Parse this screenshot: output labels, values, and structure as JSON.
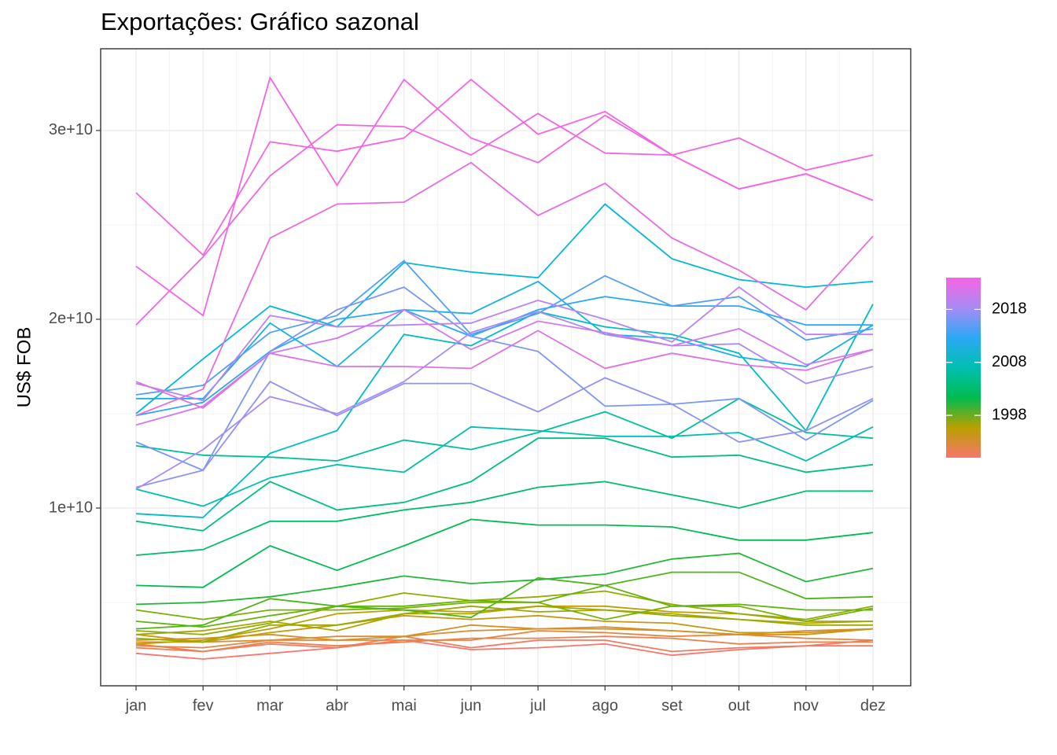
{
  "chart_data": {
    "type": "line",
    "title": "Exportações: Gráfico sazonal",
    "y_label": "US$ FOB",
    "categories": [
      "jan",
      "fev",
      "mar",
      "abr",
      "mai",
      "jun",
      "jul",
      "ago",
      "set",
      "out",
      "nov",
      "dez"
    ],
    "ylim": [
      583000000.0,
      34330000000.0
    ],
    "yticks": [
      {
        "value": 10000000000.0,
        "label": "1e+10"
      },
      {
        "value": 20000000000.0,
        "label": "2e+10"
      },
      {
        "value": 30000000000.0,
        "label": "3e+10"
      }
    ],
    "grid": true,
    "colorbar": {
      "lim": [
        1990,
        2024
      ],
      "ticks": [
        1998,
        2008,
        2018
      ],
      "colors": [
        "#F8766D",
        "#B9A000",
        "#00BC50",
        "#00BFB0",
        "#2BA8F5",
        "#A88BF5",
        "#F564E3"
      ]
    },
    "series": [
      {
        "color": "#F8766D",
        "values": [
          2300000000.0,
          2000000000.0,
          2300000000.0,
          2600000000.0,
          3000000000.0,
          2500000000.0,
          2600000000.0,
          2800000000.0,
          2200000000.0,
          2500000000.0,
          2700000000.0,
          3000000000.0
        ]
      },
      {
        "color": "#F27A5E",
        "values": [
          2800000000.0,
          2400000000.0,
          2800000000.0,
          2600000000.0,
          3200000000.0,
          2600000000.0,
          3000000000.0,
          3000000000.0,
          2400000000.0,
          2600000000.0,
          2700000000.0,
          2700000000.0
        ]
      },
      {
        "color": "#EC7F4E",
        "values": [
          2600000000.0,
          2400000000.0,
          2900000000.0,
          2700000000.0,
          2900000000.0,
          3100000000.0,
          3100000000.0,
          3200000000.0,
          3100000000.0,
          2800000000.0,
          2900000000.0,
          2900000000.0
        ]
      },
      {
        "color": "#E5853E",
        "values": [
          2700000000.0,
          2600000000.0,
          3000000000.0,
          3000000000.0,
          3000000000.0,
          3000000000.0,
          3500000000.0,
          3400000000.0,
          3200000000.0,
          3300000000.0,
          3100000000.0,
          3000000000.0
        ]
      },
      {
        "color": "#DC8B2E",
        "values": [
          2900000000.0,
          2900000000.0,
          3000000000.0,
          3200000000.0,
          3200000000.0,
          3500000000.0,
          3600000000.0,
          3700000000.0,
          3500000000.0,
          3300000000.0,
          3500000000.0,
          3600000000.0
        ]
      },
      {
        "color": "#D29220",
        "values": [
          3000000000.0,
          3100000000.0,
          3300000000.0,
          3000000000.0,
          3200000000.0,
          3800000000.0,
          3600000000.0,
          3600000000.0,
          3500000000.0,
          3300000000.0,
          3300000000.0,
          3600000000.0
        ]
      },
      {
        "color": "#C69912",
        "values": [
          3300000000.0,
          2900000000.0,
          3400000000.0,
          3800000000.0,
          4300000000.0,
          4100000000.0,
          4300000000.0,
          4000000000.0,
          3900000000.0,
          3400000000.0,
          3400000000.0,
          3600000000.0
        ]
      },
      {
        "color": "#B9A000",
        "values": [
          2800000000.0,
          3000000000.0,
          3600000000.0,
          4400000000.0,
          4600000000.0,
          4500000000.0,
          4800000000.0,
          4800000000.0,
          4500000000.0,
          4400000000.0,
          4000000000.0,
          4000000000.0
        ]
      },
      {
        "color": "#A9A600",
        "values": [
          3300000000.0,
          3500000000.0,
          4000000000.0,
          3500000000.0,
          4400000000.0,
          4400000000.0,
          4800000000.0,
          4600000000.0,
          4400000000.0,
          4100000000.0,
          3900000000.0,
          4000000000.0
        ]
      },
      {
        "color": "#99AB00",
        "values": [
          3100000000.0,
          2900000000.0,
          3800000000.0,
          3800000000.0,
          4400000000.0,
          4800000000.0,
          4500000000.0,
          4600000000.0,
          4300000000.0,
          4100000000.0,
          3800000000.0,
          3800000000.0
        ]
      },
      {
        "color": "#8FAE00",
        "values": [
          3500000000.0,
          3300000000.0,
          3900000000.0,
          4800000000.0,
          5500000000.0,
          5100000000.0,
          5300000000.0,
          5600000000.0,
          4900000000.0,
          4400000000.0,
          4100000000.0,
          4800000000.0
        ]
      },
      {
        "color": "#78B100",
        "values": [
          4600000000.0,
          4100000000.0,
          4600000000.0,
          4600000000.0,
          4700000000.0,
          5000000000.0,
          5000000000.0,
          4100000000.0,
          4800000000.0,
          4800000000.0,
          4000000000.0,
          4700000000.0
        ]
      },
      {
        "color": "#62B30B",
        "values": [
          4000000000.0,
          3700000000.0,
          4300000000.0,
          4800000000.0,
          4800000000.0,
          5100000000.0,
          5000000000.0,
          5900000000.0,
          4800000000.0,
          4900000000.0,
          4600000000.0,
          4600000000.0
        ]
      },
      {
        "color": "#4DB617",
        "values": [
          3600000000.0,
          3800000000.0,
          5200000000.0,
          4800000000.0,
          4600000000.0,
          4200000000.0,
          6300000000.0,
          5900000000.0,
          6600000000.0,
          6600000000.0,
          5200000000.0,
          5300000000.0
        ]
      },
      {
        "color": "#20B935",
        "values": [
          4900000000.0,
          5000000000.0,
          5300000000.0,
          5800000000.0,
          6400000000.0,
          6000000000.0,
          6200000000.0,
          6500000000.0,
          7300000000.0,
          7600000000.0,
          6100000000.0,
          6800000000.0
        ]
      },
      {
        "color": "#00BC50",
        "values": [
          5900000000.0,
          5800000000.0,
          8000000000.0,
          6700000000.0,
          8000000000.0,
          9400000000.0,
          9100000000.0,
          9100000000.0,
          9000000000.0,
          8300000000.0,
          8300000000.0,
          8700000000.0
        ]
      },
      {
        "color": "#00BD6B",
        "values": [
          7500000000.0,
          7800000000.0,
          9300000000.0,
          9300000000.0,
          9900000000.0,
          10300000000.0,
          11100000000.0,
          11400000000.0,
          10700000000.0,
          10000000000.0,
          10900000000.0,
          10900000000.0
        ]
      },
      {
        "color": "#00BE86",
        "values": [
          9300000000.0,
          8800000000.0,
          11400000000.0,
          9900000000.0,
          10300000000.0,
          11400000000.0,
          13700000000.0,
          13700000000.0,
          12700000000.0,
          12800000000.0,
          11900000000.0,
          12300000000.0
        ]
      },
      {
        "color": "#00BF9B",
        "values": [
          13300000000.0,
          12800000000.0,
          12700000000.0,
          12500000000.0,
          13600000000.0,
          13100000000.0,
          14000000000.0,
          15100000000.0,
          13700000000.0,
          15800000000.0,
          14000000000.0,
          13700000000.0
        ]
      },
      {
        "color": "#00BFB0",
        "values": [
          11000000000.0,
          10100000000.0,
          11600000000.0,
          12300000000.0,
          11900000000.0,
          14300000000.0,
          14100000000.0,
          13800000000.0,
          13800000000.0,
          14000000000.0,
          12500000000.0,
          14300000000.0
        ]
      },
      {
        "color": "#00BCC4",
        "values": [
          9700000000.0,
          9500000000.0,
          12900000000.0,
          14100000000.0,
          19200000000.0,
          18600000000.0,
          20400000000.0,
          19600000000.0,
          19200000000.0,
          18200000000.0,
          14100000000.0,
          20800000000.0
        ]
      },
      {
        "color": "#00B8D8",
        "values": [
          15000000000.0,
          17900000000.0,
          20700000000.0,
          19600000000.0,
          23000000000.0,
          22500000000.0,
          22200000000.0,
          26100000000.0,
          23200000000.0,
          22100000000.0,
          21700000000.0,
          22000000000.0
        ]
      },
      {
        "color": "#16B0E6",
        "values": [
          15800000000.0,
          15800000000.0,
          19800000000.0,
          17500000000.0,
          20500000000.0,
          20300000000.0,
          22000000000.0,
          19200000000.0,
          19000000000.0,
          18000000000.0,
          17500000000.0,
          19700000000.0
        ]
      },
      {
        "color": "#2BA8F5",
        "values": [
          14900000000.0,
          15600000000.0,
          18300000000.0,
          20000000000.0,
          20500000000.0,
          19100000000.0,
          20500000000.0,
          21200000000.0,
          20700000000.0,
          20700000000.0,
          19700000000.0,
          19700000000.0
        ]
      },
      {
        "color": "#529FF7",
        "values": [
          16000000000.0,
          16500000000.0,
          19300000000.0,
          20200000000.0,
          23100000000.0,
          19200000000.0,
          20300000000.0,
          22300000000.0,
          20700000000.0,
          21200000000.0,
          18900000000.0,
          19500000000.0
        ]
      },
      {
        "color": "#7A97F8",
        "values": [
          13500000000.0,
          12000000000.0,
          18300000000.0,
          20500000000.0,
          21700000000.0,
          19100000000.0,
          18300000000.0,
          15400000000.0,
          15500000000.0,
          15800000000.0,
          13600000000.0,
          15700000000.0
        ]
      },
      {
        "color": "#9191F6",
        "values": [
          11100000000.0,
          12000000000.0,
          16700000000.0,
          14900000000.0,
          16600000000.0,
          16600000000.0,
          15100000000.0,
          16900000000.0,
          15500000000.0,
          13500000000.0,
          14100000000.0,
          15800000000.0
        ]
      },
      {
        "color": "#A88BF5",
        "values": [
          11000000000.0,
          13100000000.0,
          15900000000.0,
          15000000000.0,
          16700000000.0,
          19300000000.0,
          20400000000.0,
          19200000000.0,
          18600000000.0,
          18700000000.0,
          16600000000.0,
          17500000000.0
        ]
      },
      {
        "color": "#BC82F2",
        "values": [
          16600000000.0,
          15700000000.0,
          20200000000.0,
          19600000000.0,
          19700000000.0,
          19800000000.0,
          21000000000.0,
          20000000000.0,
          18800000000.0,
          21700000000.0,
          19200000000.0,
          19200000000.0
        ]
      },
      {
        "color": "#D078F0",
        "values": [
          14400000000.0,
          15400000000.0,
          18200000000.0,
          19000000000.0,
          20500000000.0,
          18400000000.0,
          19900000000.0,
          19300000000.0,
          18600000000.0,
          19500000000.0,
          17600000000.0,
          18400000000.0
        ]
      },
      {
        "color": "#DE71E6",
        "values": [
          16700000000.0,
          15300000000.0,
          18200000000.0,
          17500000000.0,
          17500000000.0,
          17400000000.0,
          19400000000.0,
          17400000000.0,
          18200000000.0,
          17600000000.0,
          17300000000.0,
          18400000000.0
        ]
      },
      {
        "color": "#E86CDF",
        "values": [
          14900000000.0,
          16300000000.0,
          24300000000.0,
          26100000000.0,
          26200000000.0,
          28300000000.0,
          25500000000.0,
          27200000000.0,
          24300000000.0,
          22600000000.0,
          20500000000.0,
          24400000000.0
        ]
      },
      {
        "color": "#EE68E1",
        "values": [
          19700000000.0,
          23300000000.0,
          27600000000.0,
          30300000000.0,
          30200000000.0,
          28700000000.0,
          30900000000.0,
          28800000000.0,
          28700000000.0,
          26900000000.0,
          27700000000.0,
          26300000000.0
        ]
      },
      {
        "color": "#F266E2",
        "values": [
          26700000000.0,
          23400000000.0,
          29400000000.0,
          28900000000.0,
          29600000000.0,
          32700000000.0,
          29800000000.0,
          31000000000.0,
          28700000000.0,
          29600000000.0,
          27900000000.0,
          28700000000.0
        ]
      },
      {
        "color": "#F564E3",
        "values": [
          22800000000.0,
          20200000000.0,
          32800000000.0,
          27100000000.0,
          32700000000.0,
          29600000000.0,
          28300000000.0,
          30800000000.0,
          28700000000.0,
          26900000000.0,
          27700000000.0,
          26300000000.0
        ]
      }
    ]
  }
}
